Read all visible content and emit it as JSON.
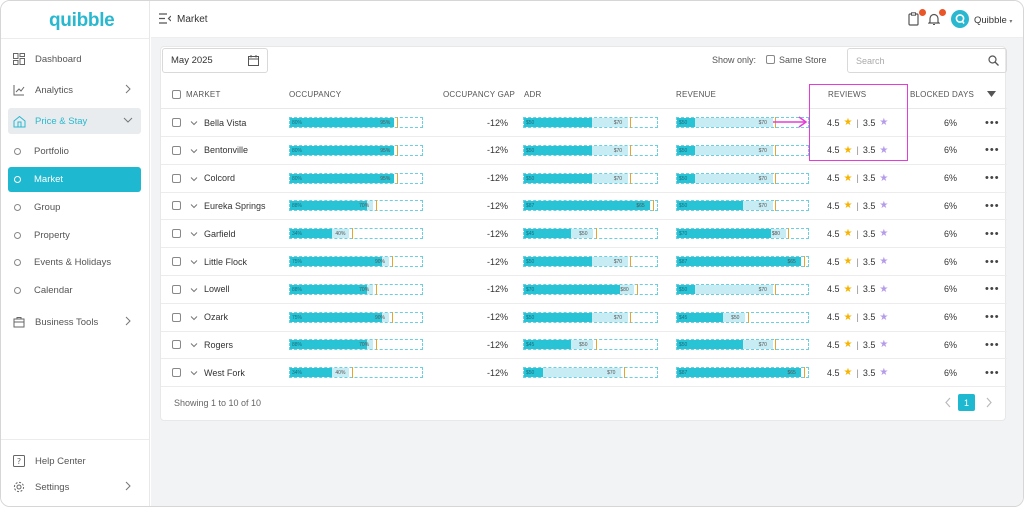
{
  "app": {
    "logo": "quibble",
    "username": "Quibble"
  },
  "topbar": {
    "breadcrumb": "Market"
  },
  "sidebar": {
    "items": [
      {
        "label": "Dashboard",
        "icon": "dashboard-icon"
      },
      {
        "label": "Analytics",
        "icon": "chart-icon"
      },
      {
        "label": "Price & Stay",
        "icon": "home-price-icon"
      },
      {
        "label": "Business Tools",
        "icon": "business-tools-icon"
      }
    ],
    "subitems": [
      "Portfolio",
      "Market",
      "Group",
      "Property",
      "Events & Holidays",
      "Calendar"
    ],
    "bottom": [
      {
        "label": "Help Center",
        "icon": "help-icon"
      },
      {
        "label": "Settings",
        "icon": "gear-icon"
      }
    ]
  },
  "filters": {
    "date": "May 2025",
    "show_only": "Show only:",
    "same_store": "Same Store",
    "search_placeholder": "Search"
  },
  "table": {
    "headers": {
      "market": "MARKET",
      "occupancy": "OCCUPANCY",
      "occ_gap": "OCCUPANCY GAP",
      "adr": "ADR",
      "revenue": "REVENUE",
      "reviews": "REVIEWS",
      "blocked": "BLOCKED DAYS"
    },
    "rows": [
      {
        "market": "Bella Vista",
        "occ_in": "80%",
        "occ_out": "95%",
        "occ_fill": 0.79,
        "occ_bg": 0.79,
        "gap": "-12%",
        "adr_in": "$50",
        "adr_out": "$70",
        "adr_fill": 0.51,
        "adr_bg": 0.78,
        "rev_in": "$50",
        "rev_out": "$70",
        "rev_fill": 0.14,
        "rev_bg": 0.73,
        "rating1": "4.5",
        "rating2": "3.5",
        "blocked": "6%"
      },
      {
        "market": "Bentonville",
        "occ_in": "80%",
        "occ_out": "95%",
        "occ_fill": 0.79,
        "occ_bg": 0.79,
        "gap": "-12%",
        "adr_in": "$50",
        "adr_out": "$70",
        "adr_fill": 0.51,
        "adr_bg": 0.78,
        "rev_in": "$50",
        "rev_out": "$70",
        "rev_fill": 0.14,
        "rev_bg": 0.73,
        "rating1": "4.5",
        "rating2": "3.5",
        "blocked": "6%"
      },
      {
        "market": "Colcord",
        "occ_in": "80%",
        "occ_out": "95%",
        "occ_fill": 0.79,
        "occ_bg": 0.79,
        "gap": "-12%",
        "adr_in": "$50",
        "adr_out": "$70",
        "adr_fill": 0.51,
        "adr_bg": 0.78,
        "rev_in": "$50",
        "rev_out": "$70",
        "rev_fill": 0.14,
        "rev_bg": 0.73,
        "rating1": "4.5",
        "rating2": "3.5",
        "blocked": "6%"
      },
      {
        "market": "Eureka Springs",
        "occ_in": "88%",
        "occ_out": "70%",
        "occ_fill": 0.58,
        "occ_bg": 0.63,
        "gap": "-12%",
        "adr_in": "$87",
        "adr_out": "$65",
        "adr_fill": 0.95,
        "adr_bg": 0.95,
        "rev_in": "$50",
        "rev_out": "$70",
        "rev_fill": 0.5,
        "rev_bg": 0.73,
        "rating1": "4.5",
        "rating2": "3.5",
        "blocked": "6%"
      },
      {
        "market": "Garfield",
        "occ_in": "34%",
        "occ_out": "40%",
        "occ_fill": 0.32,
        "occ_bg": 0.45,
        "gap": "-12%",
        "adr_in": "$45",
        "adr_out": "$50",
        "adr_fill": 0.35,
        "adr_bg": 0.52,
        "rev_in": "$70",
        "rev_out": "$80",
        "rev_fill": 0.72,
        "rev_bg": 0.83,
        "rating1": "4.5",
        "rating2": "3.5",
        "blocked": "6%"
      },
      {
        "market": "Little Flock",
        "occ_in": "75%",
        "occ_out": "90%",
        "occ_fill": 0.7,
        "occ_bg": 0.75,
        "gap": "-12%",
        "adr_in": "$50",
        "adr_out": "$70",
        "adr_fill": 0.51,
        "adr_bg": 0.78,
        "rev_in": "$87",
        "rev_out": "$65",
        "rev_fill": 0.95,
        "rev_bg": 0.95,
        "rating1": "4.5",
        "rating2": "3.5",
        "blocked": "6%"
      },
      {
        "market": "Lowell",
        "occ_in": "88%",
        "occ_out": "70%",
        "occ_fill": 0.58,
        "occ_bg": 0.63,
        "gap": "-12%",
        "adr_in": "$70",
        "adr_out": "$80",
        "adr_fill": 0.72,
        "adr_bg": 0.83,
        "rev_in": "$50",
        "rev_out": "$70",
        "rev_fill": 0.14,
        "rev_bg": 0.73,
        "rating1": "4.5",
        "rating2": "3.5",
        "blocked": "6%"
      },
      {
        "market": "Ozark",
        "occ_in": "75%",
        "occ_out": "90%",
        "occ_fill": 0.7,
        "occ_bg": 0.75,
        "gap": "-12%",
        "adr_in": "$50",
        "adr_out": "$70",
        "adr_fill": 0.51,
        "adr_bg": 0.78,
        "rev_in": "$45",
        "rev_out": "$50",
        "rev_fill": 0.35,
        "rev_bg": 0.52,
        "rating1": "4.5",
        "rating2": "3.5",
        "blocked": "6%"
      },
      {
        "market": "Rogers",
        "occ_in": "88%",
        "occ_out": "70%",
        "occ_fill": 0.58,
        "occ_bg": 0.63,
        "gap": "-12%",
        "adr_in": "$45",
        "adr_out": "$50",
        "adr_fill": 0.35,
        "adr_bg": 0.52,
        "rev_in": "$50",
        "rev_out": "$70",
        "rev_fill": 0.5,
        "rev_bg": 0.73,
        "rating1": "4.5",
        "rating2": "3.5",
        "blocked": "6%"
      },
      {
        "market": "West Fork",
        "occ_in": "34%",
        "occ_out": "40%",
        "occ_fill": 0.32,
        "occ_bg": 0.45,
        "gap": "-12%",
        "adr_in": "$50",
        "adr_out": "$70",
        "adr_fill": 0.14,
        "adr_bg": 0.73,
        "rev_in": "$87",
        "rev_out": "$65",
        "rev_fill": 0.95,
        "rev_bg": 0.95,
        "rating1": "4.5",
        "rating2": "3.5",
        "blocked": "6%"
      }
    ]
  },
  "footer": {
    "showing": "Showing 1 to 10 of 10",
    "current_page": "1"
  },
  "colors": {
    "accent": "#1eb8d0",
    "bar": "#28c3d5",
    "bar_light": "#c8ecf3",
    "star_gold": "#f5b400",
    "star_purple": "#b69ce8",
    "highlight": "#e53bd8"
  }
}
